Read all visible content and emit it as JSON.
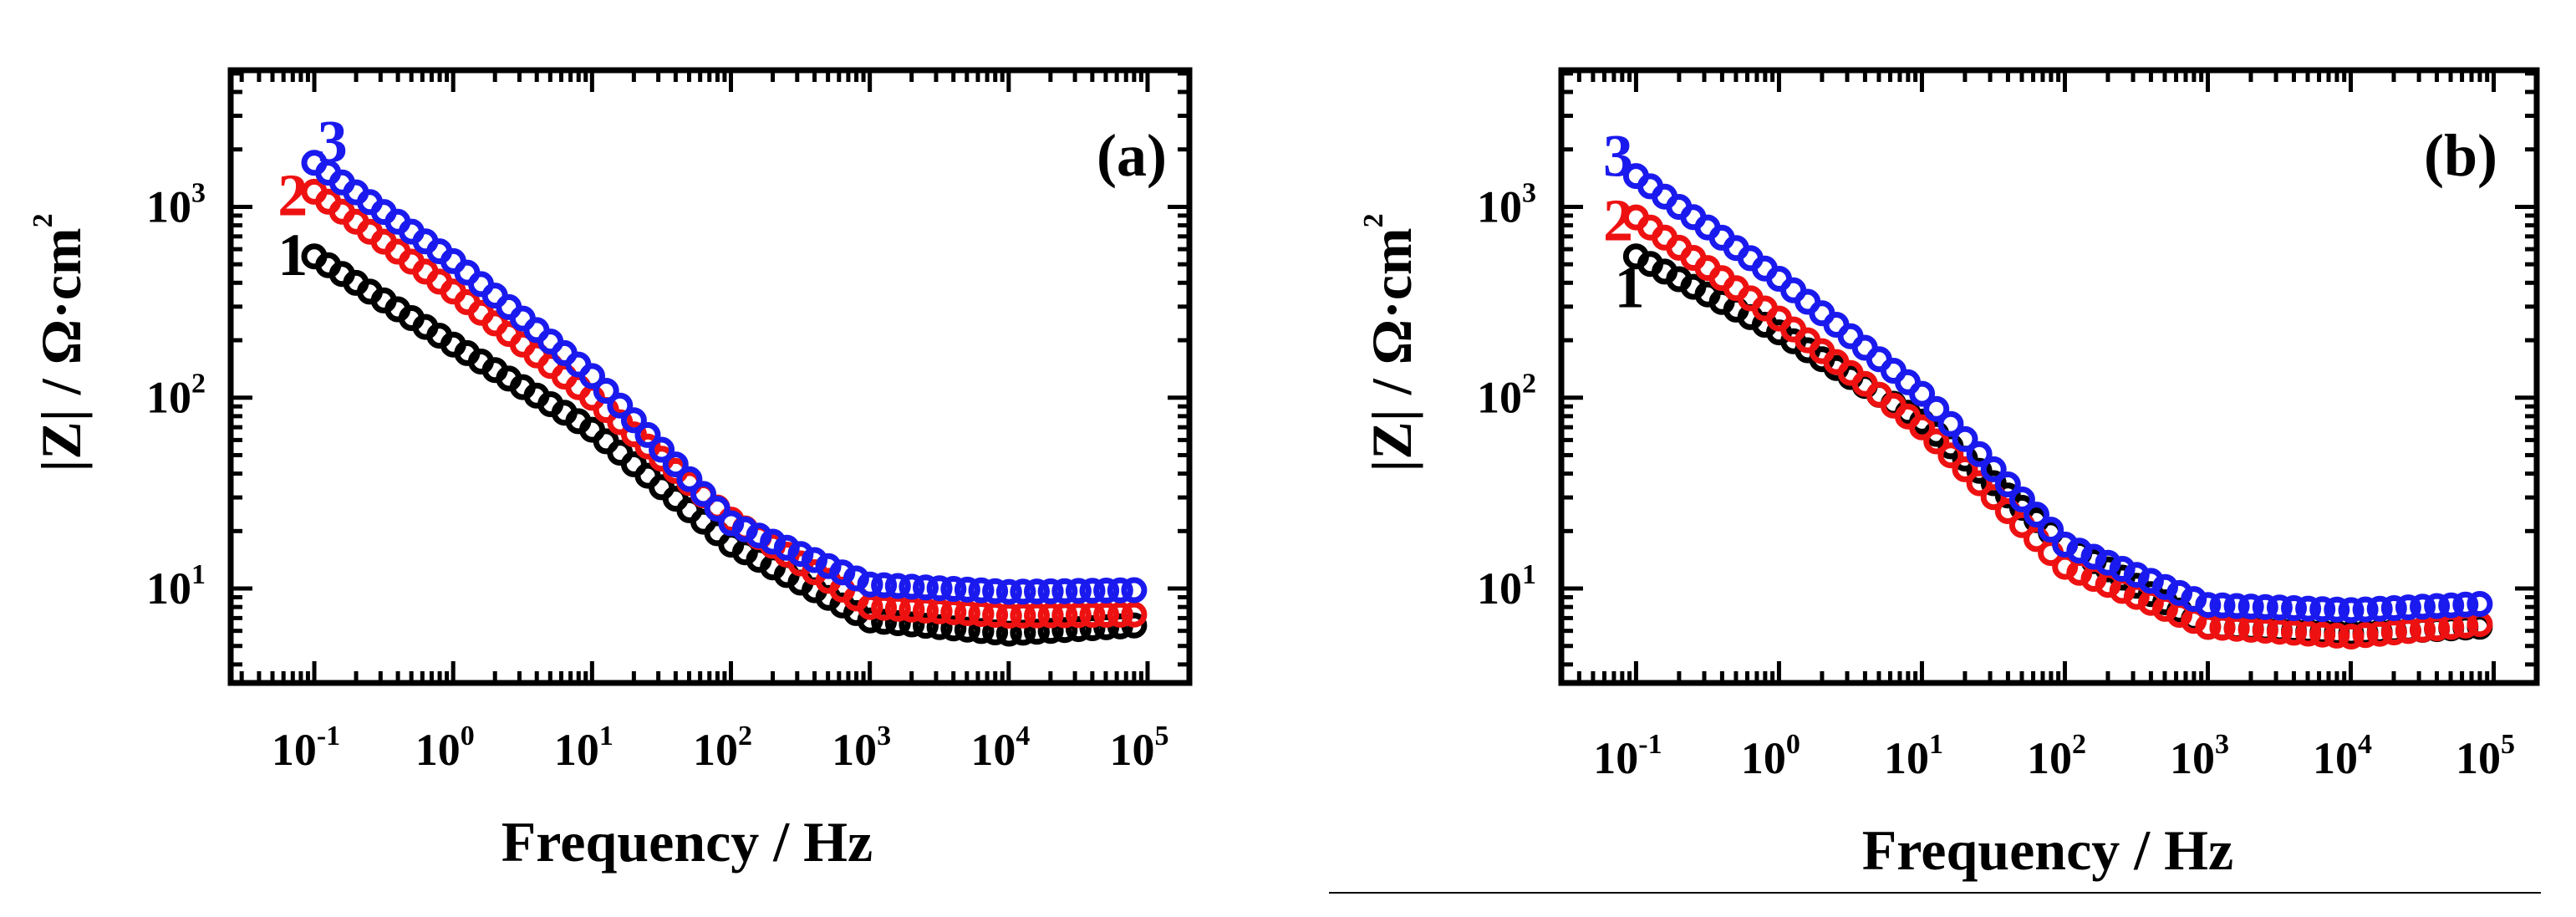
{
  "chart_data": [
    {
      "type": "scatter",
      "panel_label": "(a)",
      "xscale": "log",
      "yscale": "log",
      "xlim": [
        0.025,
        200000
      ],
      "ylim": [
        3.2,
        5200
      ],
      "xlabel": "Frequency / Hz",
      "ylabel_parts": [
        "|Z| / Ω·cm",
        "2"
      ],
      "x_tick_labels": [
        {
          "base": "10",
          "exp": "-1"
        },
        {
          "base": "10",
          "exp": "0"
        },
        {
          "base": "10",
          "exp": "1"
        },
        {
          "base": "10",
          "exp": "2"
        },
        {
          "base": "10",
          "exp": "3"
        },
        {
          "base": "10",
          "exp": "4"
        },
        {
          "base": "10",
          "exp": "5"
        }
      ],
      "y_tick_labels": [
        {
          "base": "10",
          "exp": "1"
        },
        {
          "base": "10",
          "exp": "2"
        },
        {
          "base": "10",
          "exp": "3"
        }
      ],
      "x_ticks": [
        0.1,
        1,
        10,
        100,
        1000,
        10000,
        100000
      ],
      "y_ticks": [
        10,
        100,
        1000
      ],
      "freq_range": [
        0.1,
        80000
      ],
      "points_per_decade": 10,
      "series": [
        {
          "name": "1",
          "color": "#000000",
          "label_at": [
            0.07,
            560
          ],
          "anchors": [
            [
              0.1,
              550
            ],
            [
              1,
              190
            ],
            [
              10,
              68
            ],
            [
              100,
              17
            ],
            [
              1000,
              6.8
            ],
            [
              10000,
              5.8
            ],
            [
              80000,
              6.4
            ]
          ]
        },
        {
          "name": "2",
          "color": "#ee1111",
          "label_at": [
            0.07,
            1150
          ],
          "anchors": [
            [
              0.1,
              1200
            ],
            [
              1,
              360
            ],
            [
              10,
              100
            ],
            [
              100,
              23
            ],
            [
              1000,
              8.0
            ],
            [
              10000,
              7.2
            ],
            [
              80000,
              7.3
            ]
          ]
        },
        {
          "name": "3",
          "color": "#1a1aee",
          "label_at": [
            0.135,
            2200
          ],
          "anchors": [
            [
              0.1,
              1700
            ],
            [
              1,
              520
            ],
            [
              10,
              130
            ],
            [
              100,
              22
            ],
            [
              1000,
              10.5
            ],
            [
              10000,
              9.6
            ],
            [
              80000,
              9.8
            ]
          ]
        }
      ]
    },
    {
      "type": "scatter",
      "panel_label": "(b)",
      "xscale": "log",
      "yscale": "log",
      "xlim": [
        0.03,
        200000
      ],
      "ylim": [
        3.2,
        5200
      ],
      "xlabel": "Frequency / Hz",
      "ylabel_parts": [
        "|Z| / Ω·cm",
        "2"
      ],
      "x_tick_labels": [
        {
          "base": "10",
          "exp": "-1"
        },
        {
          "base": "10",
          "exp": "0"
        },
        {
          "base": "10",
          "exp": "1"
        },
        {
          "base": "10",
          "exp": "2"
        },
        {
          "base": "10",
          "exp": "3"
        },
        {
          "base": "10",
          "exp": "4"
        },
        {
          "base": "10",
          "exp": "5"
        }
      ],
      "y_tick_labels": [
        {
          "base": "10",
          "exp": "1"
        },
        {
          "base": "10",
          "exp": "2"
        },
        {
          "base": "10",
          "exp": "3"
        }
      ],
      "x_ticks": [
        0.1,
        1,
        10,
        100,
        1000,
        10000,
        100000
      ],
      "y_ticks": [
        10,
        100,
        1000
      ],
      "freq_range": [
        0.1,
        80000
      ],
      "points_per_decade": 10,
      "series": [
        {
          "name": "1",
          "color": "#000000",
          "label_at": [
            0.09,
            380
          ],
          "anchors": [
            [
              0.1,
              550
            ],
            [
              1,
              220
            ],
            [
              10,
              75
            ],
            [
              100,
              17
            ],
            [
              1000,
              6.3
            ],
            [
              10000,
              5.8
            ],
            [
              80000,
              6.3
            ]
          ]
        },
        {
          "name": "2",
          "color": "#ee1111",
          "label_at": [
            0.075,
            850
          ],
          "anchors": [
            [
              0.1,
              880
            ],
            [
              1,
              260
            ],
            [
              10,
              70
            ],
            [
              100,
              13
            ],
            [
              1000,
              6.3
            ],
            [
              10000,
              5.6
            ],
            [
              80000,
              6.5
            ]
          ]
        },
        {
          "name": "3",
          "color": "#1a1aee",
          "label_at": [
            0.075,
            1850
          ],
          "anchors": [
            [
              0.1,
              1450
            ],
            [
              1,
              420
            ],
            [
              10,
              105
            ],
            [
              100,
              17
            ],
            [
              1000,
              8.2
            ],
            [
              10000,
              7.7
            ],
            [
              80000,
              8.3
            ]
          ]
        }
      ]
    }
  ]
}
